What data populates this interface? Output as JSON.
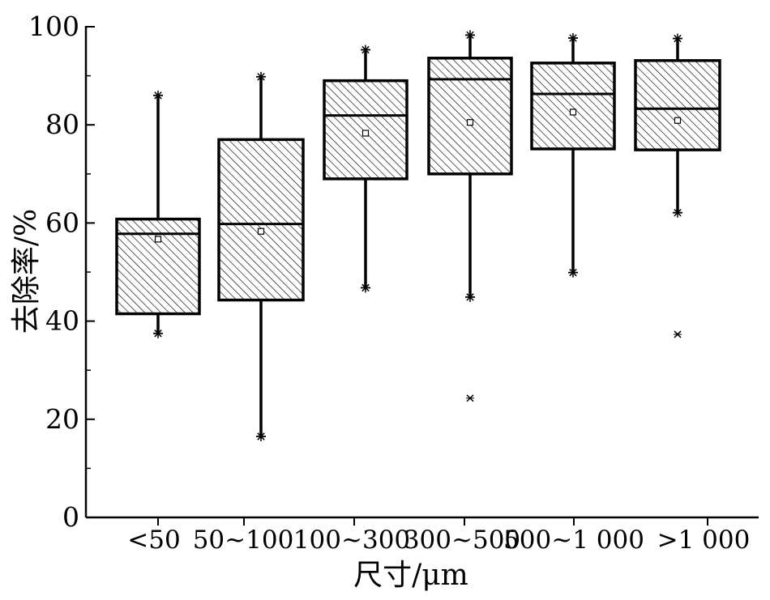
{
  "chart_data": {
    "type": "box",
    "xlabel": "尺寸/μm",
    "ylabel": "去除率/%",
    "ylim": [
      0,
      100
    ],
    "yticks": [
      0,
      20,
      40,
      60,
      80,
      100
    ],
    "grid": false,
    "box_fill": "diagonal-hatch",
    "colors": {
      "stroke": "#000000",
      "background": "#ffffff"
    },
    "categories": [
      "<50",
      "50~100",
      "100~300",
      "300~500",
      "500~1 000",
      ">1 000"
    ],
    "boxes": [
      {
        "category": "<50",
        "whisker_low": 37.5,
        "q1": 41.5,
        "median": 57.8,
        "q3": 60.8,
        "whisker_high": 86.0,
        "mean": 56.7,
        "outliers": []
      },
      {
        "category": "50~100",
        "whisker_low": 16.5,
        "q1": 44.3,
        "median": 59.8,
        "q3": 77.0,
        "whisker_high": 89.8,
        "mean": 58.3,
        "outliers": []
      },
      {
        "category": "100~300",
        "whisker_low": 46.8,
        "q1": 69.0,
        "median": 81.9,
        "q3": 89.0,
        "whisker_high": 95.3,
        "mean": 78.3,
        "outliers": []
      },
      {
        "category": "300~500",
        "whisker_low": 44.9,
        "q1": 70.0,
        "median": 89.3,
        "q3": 93.6,
        "whisker_high": 98.3,
        "mean": 80.5,
        "outliers": [
          24.3
        ]
      },
      {
        "category": "500~1 000",
        "whisker_low": 49.9,
        "q1": 75.1,
        "median": 86.3,
        "q3": 92.6,
        "whisker_high": 97.7,
        "mean": 82.6,
        "outliers": []
      },
      {
        "category": ">1 000",
        "whisker_low": 62.1,
        "q1": 74.9,
        "median": 83.3,
        "q3": 93.1,
        "whisker_high": 97.6,
        "mean": 80.9,
        "outliers": [
          37.3
        ]
      }
    ]
  }
}
